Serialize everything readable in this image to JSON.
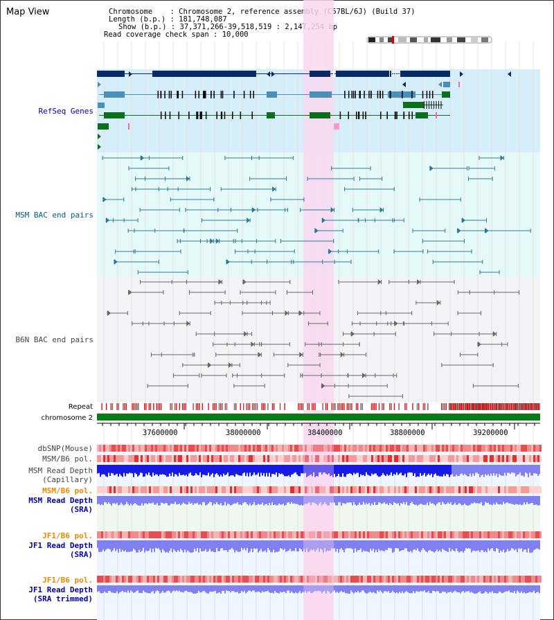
{
  "app": {
    "title": "Map View"
  },
  "info": {
    "chromosome_label": "Chromosome",
    "chromosome_value": "Chromosome 2, reference assembly (C57BL/6J) (Build 37)",
    "length_label": "Length (b.p.)",
    "length_value": "181,748,087",
    "show_label": "Show (b.p.)",
    "show_value": "37,371,266-39,518,519 : 2,147,254 bp",
    "coverage_label": "Read coverage check span",
    "coverage_value": "10,000"
  },
  "tracks": {
    "refseq": "RefSeq Genes",
    "msm_bac": "MSM BAC end pairs",
    "b6n_bac": "B6N BAC end pairs",
    "repeat": "Repeat",
    "chromosome": "chromosome 2",
    "dbsnp": "dbSNP(Mouse)",
    "msm_b6_pol": "MSM/B6 pol.",
    "msm_depth_cap_1": "MSM Read Depth",
    "msm_depth_cap_2": "(Capillary)",
    "msm_b6_pol_2": "MSM/B6 pol.",
    "msm_depth_sra_1": "MSM Read Depth",
    "msm_depth_sra_2": "(SRA)",
    "jf1_b6_pol": "JF1/B6 pol.",
    "jf1_depth_sra_1": "JF1 Read Depth",
    "jf1_depth_sra_2": "(SRA)",
    "jf1_b6_pol_2": "JF1/B6 pol.",
    "jf1_depth_trim_1": "JF1 Read Depth",
    "jf1_depth_trim_2": "(SRA trimmed)"
  },
  "axis": {
    "ticks": [
      "37600000",
      "38000000",
      "38400000",
      "38800000",
      "39200000"
    ]
  },
  "colors": {
    "refseq_bg": "#d6eef9",
    "msm_bg": "#e6f9f9",
    "b6n_bg": "#f4f4f8",
    "highlight": "#f8d8f0",
    "gene_navy": "#0a2a63",
    "gene_blue": "#4a8fba",
    "gene_green": "#0b6e1a",
    "msm_bac": "#2a7a9a",
    "b6n_bac": "#666666",
    "depth_blue": "#1a1ae6",
    "depth_light": "#8080f0",
    "label_blue": "#0000aa",
    "label_orange": "#e68a00",
    "label_teal": "#006080"
  }
}
